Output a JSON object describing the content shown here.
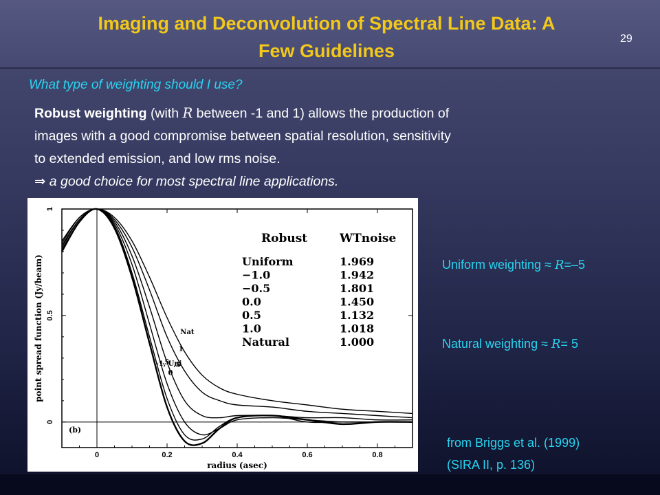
{
  "slide": {
    "title_line1": "Imaging and Deconvolution of Spectral Line Data: A",
    "title_line2": "Few Guidelines",
    "page_number": "29",
    "subtitle": "What type of weighting should I use?",
    "body": {
      "bold_lead": "Robust weighting",
      "seg1": " (with ",
      "r_symbol": "R",
      "seg2": " between -1 and 1) allows the production of",
      "line2": "images with a good compromise between spatial resolution, sensitivity",
      "line3": "to extended emission, and low rms noise.",
      "arrow": "⇒",
      "conclusion": " a good choice for most spectral line applications."
    },
    "notes": {
      "uniform_prefix": "Uniform weighting ≈ ",
      "uniform_r": "R",
      "uniform_value": "=–5",
      "natural_prefix": "Natural weighting ≈ ",
      "natural_r": "R",
      "natural_value": "= 5"
    },
    "source_line1": "from Briggs et al. (1999)",
    "source_line2": "(SIRA II, p. 136)"
  },
  "chart_data": {
    "type": "line",
    "xlabel": "radius (asec)",
    "ylabel": "point spread function (Jy/beam)",
    "panel_label": "(b)",
    "xlim": [
      -0.1,
      0.9
    ],
    "ylim": [
      -0.12,
      1.0
    ],
    "x_ticks": [
      0,
      0.2,
      0.4,
      0.6,
      0.8
    ],
    "x_tick_labels": [
      "0",
      "0.2",
      "0.4",
      "0.6",
      "0.8"
    ],
    "y_ticks": [
      0,
      0.5,
      1
    ],
    "y_tick_labels": [
      "0",
      "0.5",
      "1"
    ],
    "table": {
      "headers": [
        "Robust",
        "WTnoise"
      ],
      "rows": [
        [
          "Uniform",
          "1.969"
        ],
        [
          "−1.0",
          "1.942"
        ],
        [
          "−0.5",
          "1.801"
        ],
        [
          "0.0",
          "1.450"
        ],
        [
          "0.5",
          "1.132"
        ],
        [
          "1.0",
          "1.018"
        ],
        [
          "Natural",
          "1.000"
        ]
      ]
    },
    "series": [
      {
        "name": "Nat",
        "x": [
          -0.1,
          -0.05,
          0,
          0.05,
          0.1,
          0.15,
          0.2,
          0.25,
          0.3,
          0.35,
          0.4,
          0.5,
          0.6,
          0.7,
          0.8,
          0.9
        ],
        "y": [
          0.85,
          0.96,
          1.0,
          0.96,
          0.85,
          0.68,
          0.49,
          0.33,
          0.22,
          0.16,
          0.13,
          0.1,
          0.08,
          0.06,
          0.05,
          0.04
        ]
      },
      {
        "name": "1",
        "x": [
          -0.1,
          -0.05,
          0,
          0.05,
          0.1,
          0.15,
          0.2,
          0.25,
          0.3,
          0.35,
          0.4,
          0.5,
          0.6,
          0.7,
          0.8,
          0.9
        ],
        "y": [
          0.84,
          0.96,
          1.0,
          0.95,
          0.82,
          0.62,
          0.4,
          0.24,
          0.14,
          0.1,
          0.08,
          0.07,
          0.05,
          0.04,
          0.03,
          0.02
        ]
      },
      {
        "name": ".5",
        "x": [
          -0.1,
          -0.05,
          0,
          0.05,
          0.1,
          0.15,
          0.2,
          0.25,
          0.3,
          0.35,
          0.4,
          0.5,
          0.6,
          0.7,
          0.8,
          0.9
        ],
        "y": [
          0.83,
          0.95,
          1.0,
          0.94,
          0.78,
          0.54,
          0.28,
          0.1,
          0.03,
          0.02,
          0.03,
          0.03,
          0.02,
          0.02,
          0.01,
          0.01
        ]
      },
      {
        "name": "0",
        "x": [
          -0.1,
          -0.05,
          0,
          0.05,
          0.1,
          0.15,
          0.2,
          0.25,
          0.3,
          0.35,
          0.4,
          0.5,
          0.6,
          0.7,
          0.8,
          0.9
        ],
        "y": [
          0.82,
          0.95,
          1.0,
          0.93,
          0.74,
          0.46,
          0.18,
          0.0,
          -0.06,
          -0.03,
          0.01,
          0.02,
          0.01,
          0.0,
          0.0,
          0.0
        ]
      },
      {
        "name": "-.5",
        "x": [
          -0.1,
          -0.05,
          0,
          0.05,
          0.1,
          0.15,
          0.2,
          0.25,
          0.3,
          0.35,
          0.4,
          0.5,
          0.6,
          0.7,
          0.8,
          0.9
        ],
        "y": [
          0.81,
          0.94,
          1.0,
          0.92,
          0.7,
          0.4,
          0.11,
          -0.06,
          -0.08,
          -0.02,
          0.02,
          0.03,
          0.0,
          0.0,
          0.0,
          0.0
        ]
      },
      {
        "name": "-1, Uni",
        "x": [
          -0.1,
          -0.05,
          0,
          0.05,
          0.1,
          0.15,
          0.2,
          0.25,
          0.3,
          0.35,
          0.4,
          0.5,
          0.6,
          0.7,
          0.8,
          0.9
        ],
        "y": [
          0.8,
          0.94,
          1.0,
          0.91,
          0.68,
          0.37,
          0.07,
          -0.09,
          -0.1,
          -0.03,
          0.02,
          0.03,
          0.01,
          -0.01,
          0.0,
          0.0
        ]
      }
    ],
    "colors": {
      "line": "#000000",
      "background": "#ffffff"
    }
  }
}
